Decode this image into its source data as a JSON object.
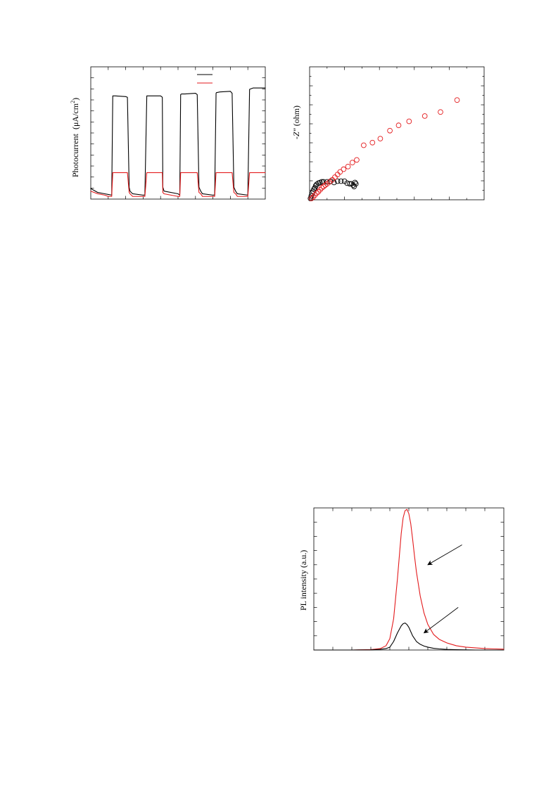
{
  "colors": {
    "black": "#000000",
    "red": "#e31a1c"
  },
  "chart_data": [
    {
      "id": "photocurrent",
      "type": "line",
      "ylabel": "Photocurrent",
      "ylabel_unit_prefix": "μ",
      "ylabel_unit": "A/cm",
      "ylabel_unit_sup": "2",
      "xlim": [
        0,
        100
      ],
      "ylim": [
        0,
        1
      ],
      "series": [
        {
          "color": "#000000",
          "x": [
            0,
            4,
            8,
            10,
            12,
            12.6,
            13.5,
            14,
            20,
            21,
            22,
            22.5,
            24,
            30,
            31,
            32.1,
            33,
            34,
            40,
            41,
            41.3,
            42,
            50,
            51,
            51.5,
            52,
            54,
            60,
            61,
            62,
            63,
            64,
            70,
            71,
            71.8,
            72,
            74,
            80,
            81,
            82,
            83,
            84,
            90,
            91,
            92,
            93,
            100
          ],
          "y": [
            0.08,
            0.05,
            0.04,
            0.035,
            0.03,
            0.78,
            0.78,
            0.78,
            0.775,
            0.77,
            0.09,
            0.06,
            0.04,
            0.03,
            0.03,
            0.78,
            0.78,
            0.78,
            0.78,
            0.77,
            0.09,
            0.06,
            0.04,
            0.03,
            0.79,
            0.795,
            0.795,
            0.8,
            0.79,
            0.09,
            0.06,
            0.04,
            0.03,
            0.03,
            0.8,
            0.805,
            0.81,
            0.815,
            0.8,
            0.09,
            0.06,
            0.04,
            0.03,
            0.83,
            0.835,
            0.84,
            0.84
          ]
        },
        {
          "color": "#e31a1c",
          "x": [
            0,
            4,
            8,
            10,
            12,
            12.6,
            13,
            20,
            21,
            22,
            22.5,
            24,
            30,
            31,
            32.1,
            33,
            40,
            41,
            41.3,
            42,
            50,
            51,
            51.5,
            52,
            60,
            61,
            62,
            63,
            64,
            70,
            71,
            71.8,
            72,
            80,
            81,
            82,
            83,
            84,
            90,
            91,
            92,
            93,
            100
          ],
          "y": [
            0.06,
            0.04,
            0.03,
            0.02,
            0.02,
            0.2,
            0.2,
            0.2,
            0.2,
            0.05,
            0.04,
            0.02,
            0.02,
            0.02,
            0.2,
            0.2,
            0.2,
            0.2,
            0.05,
            0.04,
            0.02,
            0.02,
            0.2,
            0.2,
            0.2,
            0.2,
            0.05,
            0.04,
            0.02,
            0.02,
            0.02,
            0.2,
            0.2,
            0.2,
            0.2,
            0.05,
            0.04,
            0.02,
            0.02,
            0.2,
            0.2,
            0.2,
            0.2
          ]
        }
      ],
      "legend": "top-center",
      "grid": false
    },
    {
      "id": "nyquist",
      "type": "scatter",
      "ylabel": "-Z\"",
      "ylabel_unit": "(ohm)",
      "xlim": [
        0,
        100
      ],
      "ylim": [
        0,
        100
      ],
      "series": [
        {
          "color": "#000000",
          "marker": "circle-open",
          "x": [
            0.5,
            1,
            1.5,
            2,
            2.5,
            3,
            3.5,
            4,
            5,
            6,
            7,
            8,
            10,
            12,
            14,
            16,
            18,
            20,
            21.5,
            23,
            24,
            25,
            25.5,
            26,
            26.5
          ],
          "y": [
            1,
            3,
            5,
            6.5,
            8,
            9,
            10.5,
            11.5,
            12.5,
            13,
            13.5,
            13.5,
            13.5,
            14,
            13,
            14,
            14,
            14,
            12.5,
            12,
            12,
            11,
            10,
            13,
            12
          ]
        },
        {
          "color": "#e31a1c",
          "marker": "circle-open",
          "x": [
            1,
            2,
            3,
            4,
            5,
            6,
            7,
            8,
            9,
            10,
            11.5,
            13,
            14.5,
            16,
            17.5,
            19.5,
            22,
            24.5,
            27,
            31,
            36,
            40.5,
            46,
            51,
            57,
            66,
            75,
            84.5
          ],
          "y": [
            1,
            2,
            3.5,
            5,
            6,
            7.5,
            9,
            10,
            11,
            12,
            13.5,
            15,
            17,
            19,
            21,
            23,
            25,
            28,
            30,
            41,
            43,
            46,
            52,
            56,
            59,
            63,
            66,
            75
          ]
        }
      ],
      "grid": false
    },
    {
      "id": "pl",
      "type": "line",
      "ylabel": "PL intensity (a.u.)",
      "xlim": [
        0,
        100
      ],
      "ylim": [
        0,
        100
      ],
      "series": [
        {
          "color": "#e31a1c",
          "x": [
            0,
            20,
            30,
            35,
            38,
            40,
            42,
            44,
            46,
            47,
            48,
            49,
            50,
            51,
            52,
            53,
            54,
            56,
            58,
            60,
            63,
            66,
            70,
            75,
            80,
            85,
            90,
            95,
            100
          ],
          "y": [
            0,
            0,
            0.3,
            1,
            3,
            8,
            22,
            50,
            82,
            93,
            98,
            99,
            96,
            89,
            78,
            66,
            55,
            38,
            26,
            18,
            11,
            7.5,
            5,
            3,
            2,
            1.5,
            1,
            0.8,
            0.6
          ]
        },
        {
          "color": "#000000",
          "x": [
            0,
            20,
            30,
            35,
            38,
            40,
            42,
            44,
            46,
            47,
            48,
            49,
            50,
            51,
            52,
            53,
            54,
            56,
            58,
            60,
            63,
            66,
            70,
            75,
            80,
            85,
            90,
            100
          ],
          "y": [
            0,
            0,
            0.1,
            0.5,
            1,
            2,
            6,
            12,
            17,
            18.5,
            19,
            18,
            16,
            13,
            10,
            8,
            6,
            4,
            2.8,
            2,
            1.2,
            0.8,
            0.4,
            0.2,
            0.1,
            0,
            0,
            0
          ]
        }
      ],
      "annotations": [
        {
          "type": "arrow",
          "from": [
            78,
            74
          ],
          "to": [
            60,
            60
          ]
        },
        {
          "type": "arrow",
          "from": [
            76,
            30
          ],
          "to": [
            58,
            12
          ]
        }
      ],
      "grid": false
    }
  ]
}
